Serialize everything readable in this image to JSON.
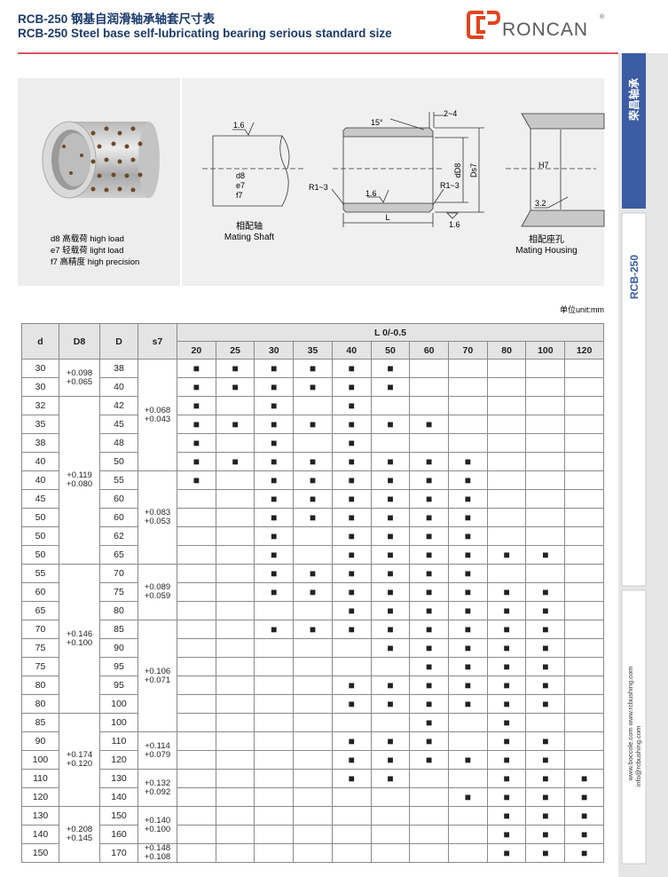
{
  "header": {
    "title_cn": "RCB-250 钢基自润滑轴承轴套尺寸表",
    "title_en": "RCB-250 Steel base self-lubricating bearing serious standard size",
    "logo": "RONCAN",
    "logo_mark": "®"
  },
  "sidebar": {
    "brand": "荣昌轴承",
    "series": "RCB-250",
    "websites": "www.boccole.com   www.rcbushing.com",
    "email": "info@rcbushing.com"
  },
  "figure": {
    "legend": [
      "d8  高载荷  high load",
      "e7  轻载荷  light load",
      "f7  高精度  high precision"
    ],
    "shaft": {
      "roughness": "1.6",
      "fits": [
        "d8",
        "e7",
        "f7"
      ],
      "label_cn": "相配轴",
      "label_en": "Mating Shaft"
    },
    "bushing": {
      "angle": "15°",
      "chamfer": "2~4",
      "inner": "dD8",
      "outer": "Ds7",
      "radius_left": "R1~3",
      "radius_right": "R1~3",
      "roughness_inner": "1.6",
      "length": "L",
      "roughness_outer": "1.6"
    },
    "housing": {
      "fit": "H7",
      "roughness": "3.2",
      "label_cn": "相配座孔",
      "label_en": "Mating Housing"
    }
  },
  "unit": "单位unit:mm",
  "table": {
    "headers": [
      "d",
      "D8",
      "D",
      "s7"
    ],
    "length_header": "L 0/-0.5",
    "lengths": [
      20,
      25,
      30,
      35,
      40,
      50,
      60,
      70,
      80,
      100,
      120
    ],
    "rows": [
      {
        "d": 30,
        "D": 38,
        "D8": [
          "+0.098",
          "+0.065"
        ],
        "s7": [
          "+0.068",
          "+0.043"
        ],
        "cells": [
          "■",
          "■",
          "■",
          "■",
          "■",
          "■",
          null,
          null,
          null,
          null,
          null
        ]
      },
      {
        "d": 30,
        "D": 40,
        "cells": [
          "■",
          "■",
          "■",
          "■",
          "■",
          "■",
          null,
          null,
          null,
          null,
          null
        ]
      },
      {
        "d": 32,
        "D": 42,
        "D8": [
          "+0.119",
          "+0.080"
        ],
        "cells": [
          "■",
          null,
          "■",
          null,
          "■",
          null,
          null,
          null,
          null,
          null,
          null
        ]
      },
      {
        "d": 35,
        "D": 45,
        "cells": [
          "■",
          "■",
          "■",
          "■",
          "■",
          "■",
          "■",
          null,
          null,
          null,
          null
        ]
      },
      {
        "d": 38,
        "D": 48,
        "cells": [
          "■",
          null,
          "■",
          null,
          "■",
          null,
          null,
          null,
          null,
          null,
          null
        ]
      },
      {
        "d": 40,
        "D": 50,
        "cells": [
          "■",
          "■",
          "■",
          "■",
          "■",
          "■",
          "■",
          "■",
          null,
          null,
          null
        ]
      },
      {
        "d": 40,
        "D": 55,
        "s7": [
          "+0.083",
          "+0.053"
        ],
        "cells": [
          "■",
          null,
          "■",
          "■",
          "■",
          "■",
          "■",
          "■",
          null,
          null,
          null
        ]
      },
      {
        "d": 45,
        "D": 60,
        "cells": [
          null,
          null,
          "■",
          "■",
          "■",
          "■",
          "■",
          "■",
          null,
          null,
          null
        ]
      },
      {
        "d": 50,
        "D": 60,
        "cells": [
          null,
          null,
          "■",
          "■",
          "■",
          "■",
          "■",
          "■",
          null,
          null,
          null
        ]
      },
      {
        "d": 50,
        "D": 62,
        "cells": [
          null,
          null,
          "■",
          null,
          "■",
          "■",
          "■",
          "■",
          null,
          null,
          null
        ]
      },
      {
        "d": 50,
        "D": 65,
        "cells": [
          null,
          null,
          "■",
          null,
          "■",
          "■",
          "■",
          "■",
          "■",
          "■",
          null
        ]
      },
      {
        "d": 55,
        "D": 70,
        "D8": [
          "+0.146",
          "+0.100"
        ],
        "s7": [
          "+0.089",
          "+0.059"
        ],
        "cells": [
          null,
          null,
          "■",
          "■",
          "■",
          "■",
          "■",
          "■",
          null,
          null,
          null
        ]
      },
      {
        "d": 60,
        "D": 75,
        "cells": [
          null,
          null,
          "■",
          "■",
          "■",
          "■",
          "■",
          "■",
          "■",
          "■",
          null
        ]
      },
      {
        "d": 65,
        "D": 80,
        "cells": [
          null,
          null,
          null,
          null,
          "■",
          "■",
          "■",
          "■",
          "■",
          "■",
          null
        ]
      },
      {
        "d": 70,
        "D": 85,
        "s7": [
          "+0.106",
          "+0.071"
        ],
        "cells": [
          null,
          null,
          "■",
          "■",
          "■",
          "■",
          "■",
          "■",
          "■",
          "■",
          null
        ]
      },
      {
        "d": 75,
        "D": 90,
        "cells": [
          null,
          null,
          null,
          null,
          null,
          "■",
          "■",
          "■",
          "■",
          "■",
          null
        ]
      },
      {
        "d": 75,
        "D": 95,
        "cells": [
          null,
          null,
          null,
          null,
          null,
          null,
          "■",
          "■",
          "■",
          "■",
          null
        ]
      },
      {
        "d": 80,
        "D": 95,
        "cells": [
          null,
          null,
          null,
          null,
          "■",
          "■",
          "■",
          "■",
          "■",
          "■",
          null
        ]
      },
      {
        "d": 80,
        "D": 100,
        "cells": [
          null,
          null,
          null,
          null,
          "■",
          "■",
          "■",
          "■",
          "■",
          "■",
          null
        ]
      },
      {
        "d": 85,
        "D": 100,
        "D8": [
          "+0.174",
          "+0.120"
        ],
        "cells": [
          null,
          null,
          null,
          null,
          null,
          null,
          "■",
          null,
          "■",
          null,
          null
        ]
      },
      {
        "d": 90,
        "D": 110,
        "s7": [
          "+0.114",
          "+0.079"
        ],
        "cells": [
          null,
          null,
          null,
          null,
          "■",
          "■",
          "■",
          null,
          "■",
          "■",
          null
        ]
      },
      {
        "d": 100,
        "D": 120,
        "cells": [
          null,
          null,
          null,
          null,
          "■",
          "■",
          "■",
          "■",
          "■",
          "■",
          null
        ]
      },
      {
        "d": 110,
        "D": 130,
        "s7": [
          "+0.132",
          "+0.092"
        ],
        "cells": [
          null,
          null,
          null,
          null,
          "■",
          "■",
          null,
          null,
          "■",
          "■",
          "■"
        ]
      },
      {
        "d": 120,
        "D": 140,
        "cells": [
          null,
          null,
          null,
          null,
          null,
          null,
          null,
          "■",
          "■",
          "■",
          "■"
        ]
      },
      {
        "d": 130,
        "D": 150,
        "D8": [
          "+0.208",
          "+0.145"
        ],
        "s7": [
          "+0.140",
          "+0.100"
        ],
        "cells": [
          null,
          null,
          null,
          null,
          null,
          null,
          null,
          null,
          "■",
          "■",
          "■"
        ]
      },
      {
        "d": 140,
        "D": 160,
        "cells": [
          null,
          null,
          null,
          null,
          null,
          null,
          null,
          null,
          "■",
          "■",
          "■"
        ]
      },
      {
        "d": 150,
        "D": 170,
        "s7": [
          "+0.148",
          "+0.108"
        ],
        "cells": [
          null,
          null,
          null,
          null,
          null,
          null,
          null,
          null,
          "■",
          "■",
          "■"
        ]
      }
    ]
  }
}
